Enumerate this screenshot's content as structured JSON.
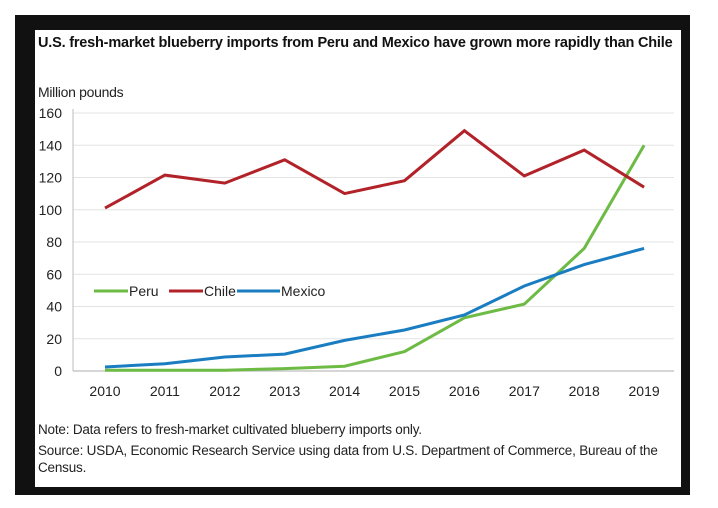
{
  "chart_data": {
    "type": "line",
    "title": "U.S. fresh-market blueberry imports from Peru and Mexico have grown more rapidly than Chile",
    "xlabel": "",
    "ylabel": "Million pounds",
    "x": [
      "2010",
      "2011",
      "2012",
      "2013",
      "2014",
      "2015",
      "2016",
      "2017",
      "2018",
      "2019"
    ],
    "ylim": [
      0,
      160
    ],
    "yticks": [
      0,
      20,
      40,
      60,
      80,
      100,
      120,
      140,
      160
    ],
    "grid": true,
    "legend_position": "center-left",
    "series": [
      {
        "name": "Peru",
        "color": "#6dbb45",
        "values": [
          0.5,
          0.5,
          0.5,
          1.5,
          3,
          12,
          33,
          41.5,
          76,
          140
        ]
      },
      {
        "name": "Chile",
        "color": "#b22229",
        "values": [
          101,
          121.5,
          116.5,
          131,
          110,
          118,
          149,
          121,
          137,
          114
        ]
      },
      {
        "name": "Mexico",
        "color": "#1a7dc1",
        "values": [
          2.5,
          4.5,
          8.7,
          10.5,
          19,
          25.4,
          34.7,
          52.7,
          66,
          76
        ]
      }
    ]
  },
  "notes": {
    "note": "Note: Data refers to fresh-market cultivated blueberry imports only.",
    "source": "Source: USDA, Economic Research Service using data from U.S. Department of Commerce, Bureau of the Census."
  }
}
